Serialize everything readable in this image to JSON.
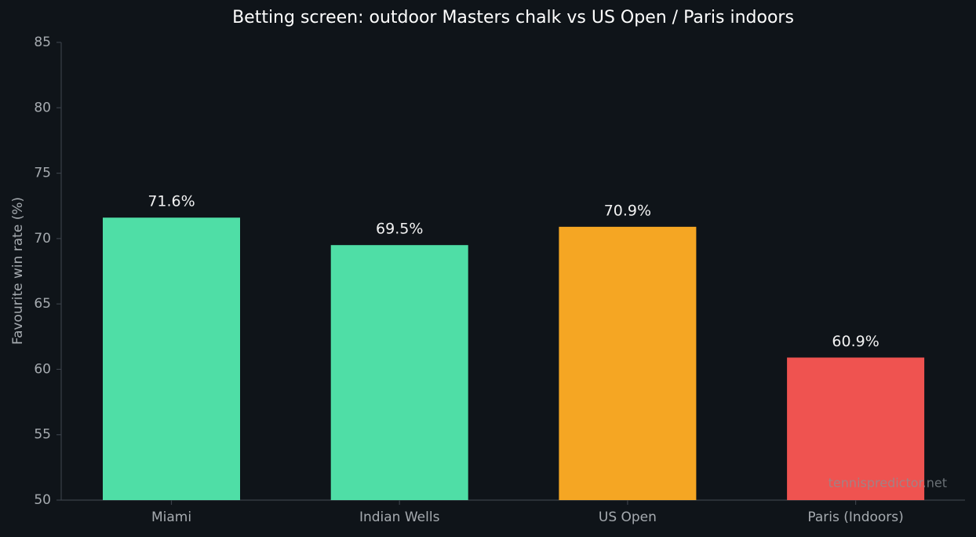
{
  "chart_data": {
    "type": "bar",
    "title": "Betting screen: outdoor Masters chalk vs US Open / Paris indoors",
    "ylabel": "Favourite win rate (%)",
    "categories": [
      "Miami",
      "Indian Wells",
      "US Open",
      "Paris (Indoors)"
    ],
    "values": [
      71.6,
      69.5,
      70.9,
      60.9
    ],
    "value_labels": [
      "71.6%",
      "69.5%",
      "70.9%",
      "60.9%"
    ],
    "colors": [
      "#4fdea6",
      "#4fdea6",
      "#f5a623",
      "#ef5350"
    ],
    "ylim": [
      50,
      85
    ],
    "yticks": [
      50,
      55,
      60,
      65,
      70,
      75,
      80,
      85
    ],
    "grid": false,
    "watermark": "tennispredictor.net"
  }
}
